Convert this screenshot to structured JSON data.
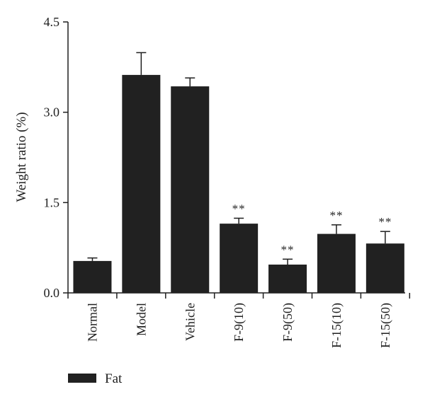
{
  "chart_data": {
    "type": "bar",
    "categories": [
      "Normal",
      "Model",
      "Vehicle",
      "F-9(10)",
      "F-9(50)",
      "F-15(10)",
      "F-15(50)"
    ],
    "series": [
      {
        "name": "Fat",
        "values": [
          0.53,
          3.62,
          3.43,
          1.15,
          0.47,
          0.98,
          0.82
        ],
        "errors": [
          0.05,
          0.37,
          0.14,
          0.09,
          0.09,
          0.15,
          0.2
        ],
        "color": "#212121"
      }
    ],
    "annotations": [
      "",
      "",
      "",
      "**",
      "**",
      "**",
      "**"
    ],
    "ylabel": "Weight ratio (%)",
    "xlabel": "",
    "ylim": [
      0,
      4.5
    ],
    "yticks": [
      0.0,
      1.5,
      3.0,
      4.5
    ],
    "ytick_labels": [
      "0.0",
      "1.5",
      "3.0",
      "4.5"
    ],
    "grid": false,
    "legend_position": "bottom-left"
  }
}
